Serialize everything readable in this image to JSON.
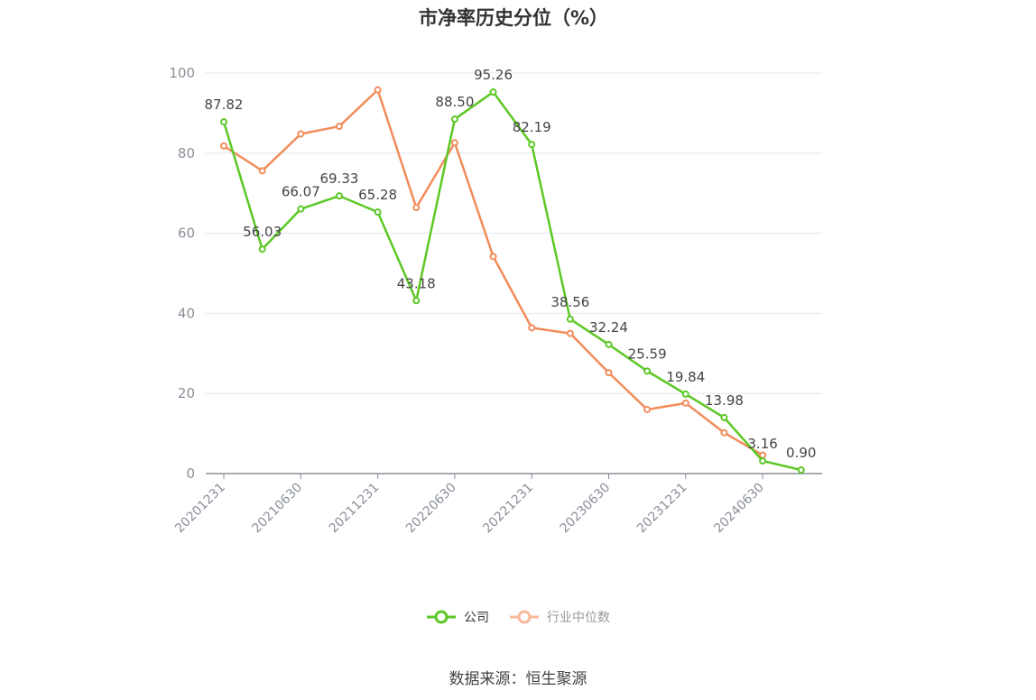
{
  "colors": {
    "company": "#5cc825",
    "industry": "#f28c5b",
    "grid": "#e3e6ec",
    "axis": "#8a8f99"
  },
  "source_text": "数据来源：恒生聚源",
  "chart_data": {
    "type": "line",
    "title": "市净率历史分位（%）",
    "ylim": [
      0,
      100
    ],
    "yticks": [
      0,
      20,
      40,
      60,
      80,
      100
    ],
    "xticks": [
      "20201231",
      "20210630",
      "20211231",
      "20220630",
      "20221231",
      "20230630",
      "20231231",
      "20240630"
    ],
    "x": [
      "20201231",
      "20210331",
      "20210630",
      "20210930",
      "20211231",
      "20220331",
      "20220630",
      "20220930",
      "20221231",
      "20230331",
      "20230630",
      "20230930",
      "20231231",
      "20240331",
      "20240630",
      "20240930"
    ],
    "series": [
      {
        "name": "公司",
        "color": "#5cc825",
        "values": [
          87.82,
          56.03,
          66.07,
          69.33,
          65.28,
          43.18,
          88.5,
          95.26,
          82.19,
          38.56,
          32.24,
          25.59,
          19.84,
          13.98,
          3.16,
          0.9
        ],
        "labels": [
          "87.82",
          "56.03",
          "66.07",
          "69.33",
          "65.28",
          "43.18",
          "88.50",
          "95.26",
          "82.19",
          "38.56",
          "32.24",
          "25.59",
          "19.84",
          "13.98",
          "3.16",
          "0.90"
        ]
      },
      {
        "name": "行业中位数",
        "color": "#f28c5b",
        "values": [
          81.8,
          75.6,
          84.8,
          86.7,
          95.8,
          66.4,
          82.6,
          54.2,
          36.4,
          35.0,
          25.2,
          16.0,
          17.6,
          10.2,
          4.6,
          null
        ]
      }
    ],
    "grid": true,
    "legend": "bottom-center"
  }
}
